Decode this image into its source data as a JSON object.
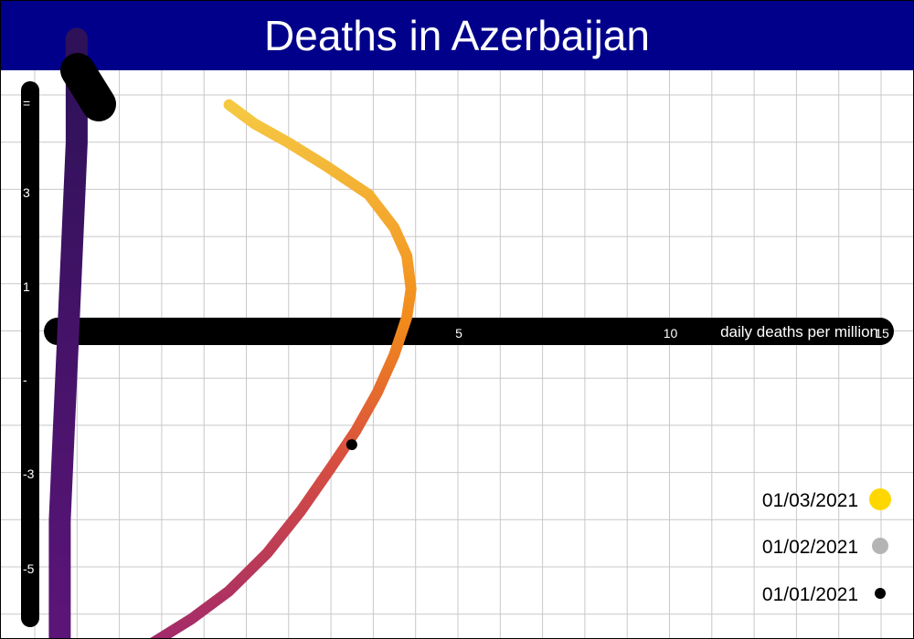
{
  "title": "Deaths in Azerbaijan",
  "chart_data": {
    "type": "line",
    "title": "Deaths in Azerbaijan",
    "xlabel": "daily deaths per million",
    "ylabel": "",
    "x_ticks": [
      "5",
      "10",
      "15"
    ],
    "y_ticks": [
      "=",
      "3",
      "1",
      "-",
      "-3",
      "-5"
    ],
    "xlim": [
      -5,
      20
    ],
    "ylim": [
      -6,
      5
    ],
    "series": [
      {
        "x": [
          -0.3,
          0.3,
          1.1,
          2.0,
          3.0,
          3.6,
          3.9,
          4.0,
          3.9,
          3.6,
          3.2,
          2.7,
          2.1,
          1.4,
          0.6,
          -0.3,
          -1.2,
          -2.1
        ],
        "y": [
          4.8,
          4.4,
          4.0,
          3.5,
          2.9,
          2.2,
          1.6,
          0.9,
          0.3,
          -0.5,
          -1.3,
          -2.1,
          -2.9,
          -3.8,
          -4.7,
          -5.5,
          -6.1,
          -6.6
        ]
      },
      {
        "x": [
          -3.9,
          -3.9,
          -4.0,
          -4.1,
          -4.2,
          -4.3,
          -4.3
        ],
        "y": [
          6.2,
          4.0,
          2.0,
          0.0,
          -2.0,
          -4.0,
          -6.5
        ]
      }
    ],
    "markers": [
      {
        "x": 2.6,
        "y": -2.4
      }
    ],
    "legend": {
      "position": "bottom-right",
      "items": [
        {
          "label": "01/03/2021",
          "color": "#ffd700"
        },
        {
          "label": "01/02/2021",
          "color": "#b4b4b4"
        },
        {
          "label": "01/01/2021",
          "color": "#000000"
        }
      ]
    },
    "grid": true
  }
}
